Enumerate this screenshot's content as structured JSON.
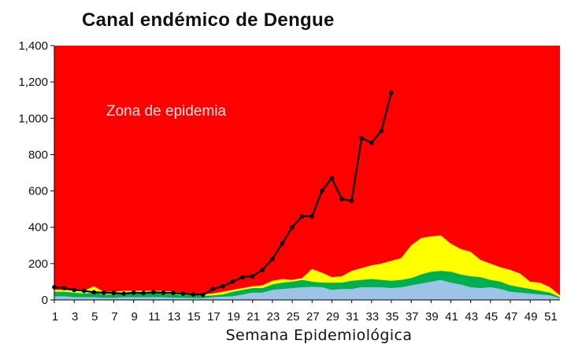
{
  "chart_data": {
    "type": "area",
    "title": "Canal endémico de Dengue",
    "xlabel": "Semana Epidemiológica",
    "ylabel": "",
    "ylim": [
      0,
      1400
    ],
    "xlim": [
      1,
      52
    ],
    "yticks": [
      0,
      200,
      400,
      600,
      800,
      1000,
      1200,
      1400
    ],
    "ytick_labels": [
      "0",
      "200",
      "400",
      "600",
      "800",
      "1,000",
      "1,200",
      "1,400"
    ],
    "xticks": [
      1,
      3,
      5,
      7,
      9,
      11,
      13,
      15,
      17,
      19,
      21,
      23,
      25,
      27,
      29,
      31,
      33,
      35,
      37,
      39,
      41,
      43,
      45,
      47,
      49,
      51
    ],
    "annotation": "Zona de epidemia",
    "grid": false,
    "zones": [
      {
        "zone": "epidemia",
        "color": "#ff0000"
      },
      {
        "zone": "alarma",
        "color": "#ffff00"
      },
      {
        "zone": "seguridad",
        "color": "#00b050"
      },
      {
        "zone": "exito",
        "color": "#9dc3e6"
      }
    ],
    "x": [
      1,
      2,
      3,
      4,
      5,
      6,
      7,
      8,
      9,
      10,
      11,
      12,
      13,
      14,
      15,
      16,
      17,
      18,
      19,
      20,
      21,
      22,
      23,
      24,
      25,
      26,
      27,
      28,
      29,
      30,
      31,
      32,
      33,
      34,
      35,
      36,
      37,
      38,
      39,
      40,
      41,
      42,
      43,
      44,
      45,
      46,
      47,
      48,
      49,
      50,
      51,
      52
    ],
    "series": [
      {
        "values": [
          20,
          20,
          15,
          15,
          15,
          12,
          12,
          15,
          15,
          15,
          15,
          15,
          12,
          12,
          10,
          10,
          15,
          18,
          20,
          30,
          40,
          40,
          55,
          60,
          65,
          70,
          72,
          70,
          55,
          60,
          60,
          70,
          70,
          70,
          65,
          70,
          80,
          90,
          100,
          110,
          95,
          85,
          70,
          65,
          70,
          60,
          45,
          40,
          35,
          30,
          25,
          10
        ]
      },
      {
        "values": [
          45,
          45,
          40,
          35,
          40,
          30,
          30,
          35,
          35,
          35,
          38,
          35,
          30,
          28,
          25,
          22,
          25,
          30,
          45,
          55,
          65,
          65,
          85,
          95,
          100,
          110,
          100,
          95,
          95,
          95,
          105,
          110,
          115,
          110,
          105,
          110,
          120,
          140,
          155,
          160,
          155,
          140,
          130,
          125,
          110,
          100,
          80,
          70,
          60,
          50,
          40,
          15
        ]
      },
      {
        "values": [
          55,
          55,
          50,
          50,
          75,
          45,
          45,
          50,
          50,
          50,
          50,
          50,
          45,
          40,
          35,
          30,
          35,
          45,
          55,
          65,
          75,
          80,
          105,
          115,
          110,
          120,
          170,
          150,
          125,
          130,
          160,
          175,
          190,
          200,
          215,
          230,
          300,
          340,
          350,
          355,
          310,
          280,
          265,
          220,
          200,
          180,
          165,
          145,
          100,
          95,
          70,
          25
        ]
      }
    ],
    "casos": [
      70,
      65,
      55,
      50,
      42,
      40,
      38,
      35,
      40,
      38,
      42,
      40,
      38,
      35,
      30,
      28,
      60,
      75,
      100,
      125,
      130,
      165,
      225,
      310,
      400,
      460,
      460,
      600,
      670,
      555,
      545,
      890,
      865,
      930,
      1140
    ]
  }
}
